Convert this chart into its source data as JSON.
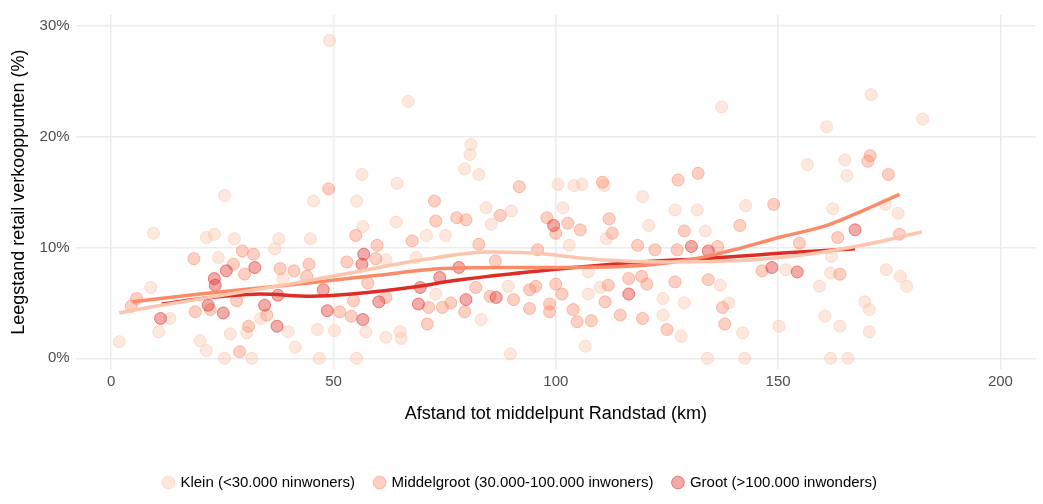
{
  "chart_data": {
    "type": "scatter",
    "xlabel": "Afstand tot middelpunt Randstad (km)",
    "ylabel": "Leegstand retail verkooppunten (%)",
    "xlim": [
      -8,
      208
    ],
    "xticks": [
      0,
      50,
      100,
      150,
      200
    ],
    "ylim": [
      -1,
      31
    ],
    "yticks": [
      {
        "value": 0,
        "label": "0%"
      },
      {
        "value": 10,
        "label": "10%"
      },
      {
        "value": 20,
        "label": "20%"
      },
      {
        "value": 30,
        "label": "30%"
      }
    ],
    "grid": true,
    "legend": "bottom",
    "marker": "circle",
    "series": [
      {
        "name": "Klein (<30.000 ninwoners)",
        "color": "#fcc5ad",
        "x": [
          1.8,
          9.5,
          8.9,
          10.7,
          13.2,
          21.4,
          23.2,
          25.5,
          27.7,
          24.1,
          20,
          21.4,
          25.5,
          26.8,
          30.5,
          31.6,
          33.6,
          36.8,
          37.7,
          39.8,
          41.4,
          45.5,
          44.8,
          38.6,
          49.1,
          66.8,
          80.9,
          80.7,
          79.5,
          82.7,
          56.4,
          64.3,
          55.2,
          56.6,
          64.1,
          84.3,
          85.5,
          90,
          70.9,
          75.2,
          89.8,
          46.8,
          55.2,
          65,
          65.2,
          61.8,
          57.3,
          46.4,
          50.2,
          83.2,
          73,
          89.3,
          68.6,
          61.8,
          137.3,
          100.5,
          104.1,
          105.9,
          110.9,
          119.5,
          101.6,
          126.8,
          131.8,
          142.7,
          120.9,
          133.6,
          111.4,
          103,
          107.3,
          107.3,
          110,
          124.1,
          128.9,
          137,
          138.9,
          106.6,
          124.1,
          128.2,
          134.1,
          142,
          142.5,
          150.2,
          170.9,
          182.5,
          160.9,
          156.6,
          165,
          165.5,
          162.3,
          177,
          174.1,
          162,
          151.8,
          159.3,
          161.8,
          174.3,
          177.5,
          178.9,
          169.5,
          170.5,
          160.5,
          163.9,
          170.5,
          161.8,
          165.7
        ],
        "values": [
          1.5,
          11.3,
          6.4,
          2.4,
          3.6,
          10.9,
          11.2,
          14.7,
          10.8,
          9.1,
          1.6,
          0.7,
          0,
          2.2,
          2.3,
          0,
          3.6,
          9.9,
          10.8,
          2.4,
          1,
          14.2,
          10.8,
          7.2,
          28.7,
          23.2,
          19.3,
          18.4,
          17.1,
          16.6,
          16.6,
          15.8,
          14.2,
          11.9,
          12.3,
          13.6,
          12.1,
          13.3,
          11.1,
          11.1,
          0.4,
          0,
          0,
          2.4,
          1.8,
          1.9,
          2.4,
          2.6,
          2.5,
          3.5,
          5.8,
          6.5,
          9.1,
          8.9,
          22.7,
          15.7,
          15.6,
          15.7,
          15.6,
          14.6,
          13.6,
          13.4,
          13.4,
          13.8,
          12,
          11.5,
          10.8,
          10.2,
          7.8,
          5.8,
          6.4,
          5.4,
          5,
          6.6,
          5,
          1.1,
          3.9,
          2,
          0,
          2.3,
          0,
          2.9,
          23.8,
          21.6,
          20.9,
          17.5,
          17.9,
          16.5,
          13.5,
          13.1,
          13.9,
          9.2,
          8,
          6.5,
          7.7,
          8,
          7.4,
          6.5,
          5.1,
          4.4,
          3.8,
          2.9,
          2.4,
          0,
          0
        ]
      },
      {
        "name": "Middelgroot (30.000-100.000 inwoners)",
        "color": "#fb8a68",
        "x": [
          5.7,
          4.5,
          18.6,
          29.5,
          32,
          27.5,
          30,
          38,
          41.1,
          44.5,
          18.9,
          22.3,
          28.2,
          30.9,
          28.9,
          35,
          44,
          48.9,
          72.7,
          73,
          77.7,
          79.8,
          87.5,
          91.8,
          98,
          67.7,
          59.8,
          59.5,
          82.7,
          86.4,
          95.9,
          55,
          53,
          61.8,
          57.7,
          54.5,
          51.4,
          54,
          71.4,
          74.5,
          76.4,
          79.5,
          71.1,
          82,
          85.2,
          90.5,
          94.1,
          95.5,
          94.1,
          110.5,
          127.5,
          132,
          100,
          102.7,
          105.5,
          112,
          112.7,
          118.4,
          122.3,
          127.3,
          128.9,
          136.4,
          141.4,
          149,
          100,
          101.4,
          111.8,
          116.4,
          119.3,
          120.5,
          126.8,
          134.3,
          98.6,
          98.6,
          103.9,
          104.8,
          108,
          111.1,
          114.5,
          119.5,
          125,
          137.5,
          138,
          146.4,
          170.7,
          170.2,
          174.8,
          177.3,
          163.4,
          154.8,
          163.9
        ],
        "values": [
          5.4,
          4.7,
          9,
          9.7,
          9.4,
          8.5,
          7.6,
          8.1,
          7.9,
          8.5,
          4.2,
          4.4,
          5.2,
          2.9,
          0.6,
          3.9,
          7.4,
          15.3,
          14.2,
          12.4,
          12.7,
          12.5,
          12.9,
          15.5,
          12.7,
          10.6,
          10.2,
          9,
          10.3,
          8.8,
          9.8,
          11.1,
          8.7,
          5.5,
          6.8,
          5.2,
          4.2,
          3.8,
          4.6,
          4.6,
          5,
          4.2,
          3.1,
          6.4,
          5.6,
          5.3,
          4.5,
          6.5,
          6.2,
          15.9,
          16.1,
          16.7,
          11.3,
          12.2,
          11.6,
          12.6,
          11.3,
          10.2,
          9.8,
          9.8,
          11.5,
          10.1,
          12,
          13.9,
          6.7,
          5.8,
          6.6,
          7.2,
          7.4,
          6.7,
          6.9,
          7.1,
          4.9,
          4.2,
          4.4,
          3.3,
          3.4,
          5.1,
          3.9,
          3.6,
          2.6,
          4.6,
          3.1,
          7.9,
          18.3,
          17.8,
          16.6,
          11.2,
          10.9,
          10.4,
          7.6
        ]
      },
      {
        "name": "Groot (>100.000 inwonders)",
        "color": "#de2d26",
        "x": [
          11.1,
          23.2,
          23.4,
          25.9,
          21.8,
          25.2,
          32.3,
          34.5,
          37.3,
          37.5,
          56.8,
          56.4,
          47.7,
          48.6,
          56.6,
          60.2,
          69.5,
          69.1,
          73.9,
          78.2,
          79.8,
          86.6,
          99.5,
          116.4,
          130.5,
          134.3,
          148.6,
          167.3,
          154.3
        ],
        "values": [
          3.6,
          7.2,
          6.6,
          7.9,
          4.8,
          4.1,
          8.2,
          4.8,
          2.9,
          5.7,
          9.4,
          8.5,
          6.2,
          4.3,
          3.5,
          5.1,
          6.4,
          4.9,
          7.3,
          8.2,
          5.3,
          5.5,
          12,
          5.8,
          10.1,
          9.7,
          8.2,
          11.6,
          7.8
        ]
      },
      {
        "type": "line",
        "marker": "none",
        "color": "#fcc5ad",
        "x": [
          1.8,
          10,
          25,
          40,
          55,
          70,
          85,
          95,
          110,
          125,
          140,
          155,
          170,
          182.3
        ],
        "values": [
          4.1,
          4.7,
          5.7,
          6.7,
          7.8,
          8.9,
          9.6,
          9.5,
          8.9,
          8.7,
          8.8,
          9.3,
          10.3,
          11.4
        ]
      },
      {
        "type": "line",
        "marker": "none",
        "color": "#fb8a68",
        "x": [
          4.8,
          20,
          44.3,
          60,
          74.5,
          90,
          114.8,
          131.4,
          140,
          151,
          161,
          170,
          177.3
        ],
        "values": [
          5.1,
          5.8,
          6.8,
          7.5,
          8.1,
          8.2,
          8.3,
          9,
          9.8,
          11,
          12,
          13.5,
          14.8
        ]
      },
      {
        "type": "line",
        "marker": "none",
        "color": "#de2d26",
        "x": [
          11.4,
          22.3,
          33.6,
          45,
          54,
          69.3,
          76.8,
          98.9,
          119.3,
          133,
          151,
          167.3
        ],
        "values": [
          4.9,
          5.5,
          5.8,
          5.6,
          5.8,
          6.5,
          7,
          8,
          8.7,
          9,
          9.5,
          9.9
        ]
      }
    ]
  }
}
